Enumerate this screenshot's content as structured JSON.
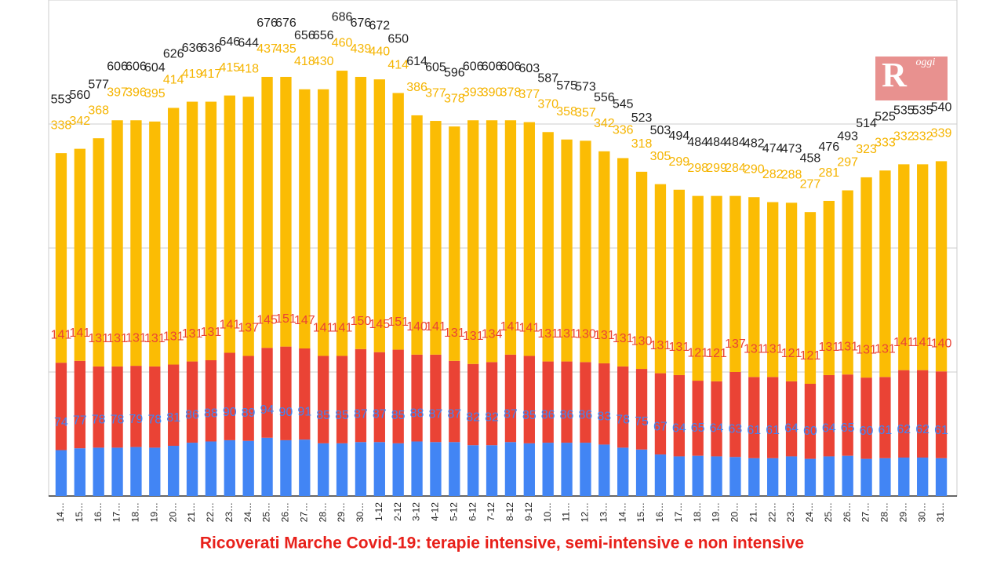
{
  "chart_data": {
    "type": "stacked_bar",
    "title": "Ricoverati Marche Covid-19: terapie intensive, semi-intensive e non intensive",
    "logo": {
      "letter": "R",
      "text": "oggi"
    },
    "categories": [
      "14…",
      "15…",
      "16…",
      "17…",
      "18…",
      "19…",
      "20…",
      "21…",
      "22…",
      "23…",
      "24…",
      "25…",
      "26…",
      "27…",
      "28…",
      "29…",
      "30…",
      "1-12",
      "2-12",
      "3-12",
      "4-12",
      "5-12",
      "6-12",
      "7-12",
      "8-12",
      "9-12",
      "10…",
      "11…",
      "12…",
      "13…",
      "14…",
      "15…",
      "16…",
      "17…",
      "18…",
      "19…",
      "20…",
      "21…",
      "22…",
      "23…",
      "24…",
      "25…",
      "26…",
      "27…",
      "28…",
      "29…",
      "30…",
      "31…"
    ],
    "series": [
      {
        "color": "#4285f4",
        "values": [
          74,
          77,
          78,
          78,
          79,
          78,
          81,
          86,
          88,
          90,
          89,
          94,
          90,
          91,
          85,
          85,
          87,
          87,
          85,
          88,
          87,
          87,
          82,
          82,
          87,
          85,
          86,
          86,
          86,
          83,
          78,
          75,
          67,
          64,
          65,
          64,
          63,
          61,
          61,
          64,
          60,
          64,
          65,
          60,
          61,
          62,
          62,
          61
        ]
      },
      {
        "color": "#ea4335",
        "values": [
          141,
          141,
          131,
          131,
          131,
          131,
          131,
          131,
          131,
          141,
          137,
          145,
          151,
          147,
          141,
          141,
          150,
          145,
          151,
          140,
          141,
          131,
          131,
          134,
          141,
          141,
          131,
          131,
          130,
          131,
          131,
          130,
          131,
          131,
          121,
          121,
          137,
          131,
          131,
          121,
          121,
          131,
          131,
          131,
          131,
          141,
          141,
          140
        ]
      },
      {
        "color": "#fbbc04",
        "values": [
          338,
          342,
          368,
          397,
          396,
          395,
          414,
          419,
          417,
          415,
          418,
          437,
          435,
          418,
          430,
          460,
          439,
          440,
          414,
          386,
          377,
          378,
          393,
          390,
          378,
          377,
          370,
          358,
          357,
          342,
          336,
          318,
          305,
          299,
          298,
          299,
          284,
          290,
          282,
          288,
          277,
          281,
          297,
          323,
          333,
          332,
          332,
          339
        ]
      }
    ],
    "totals": [
      553,
      560,
      577,
      606,
      606,
      604,
      626,
      636,
      636,
      646,
      644,
      676,
      676,
      656,
      656,
      686,
      676,
      672,
      650,
      614,
      605,
      596,
      606,
      606,
      606,
      603,
      587,
      575,
      573,
      556,
      545,
      523,
      503,
      494,
      484,
      484,
      484,
      482,
      474,
      473,
      458,
      476,
      493,
      514,
      525,
      535,
      535,
      540
    ],
    "ylim": [
      0,
      800
    ],
    "yticks": [
      0,
      200,
      400,
      600
    ],
    "grid": true
  }
}
